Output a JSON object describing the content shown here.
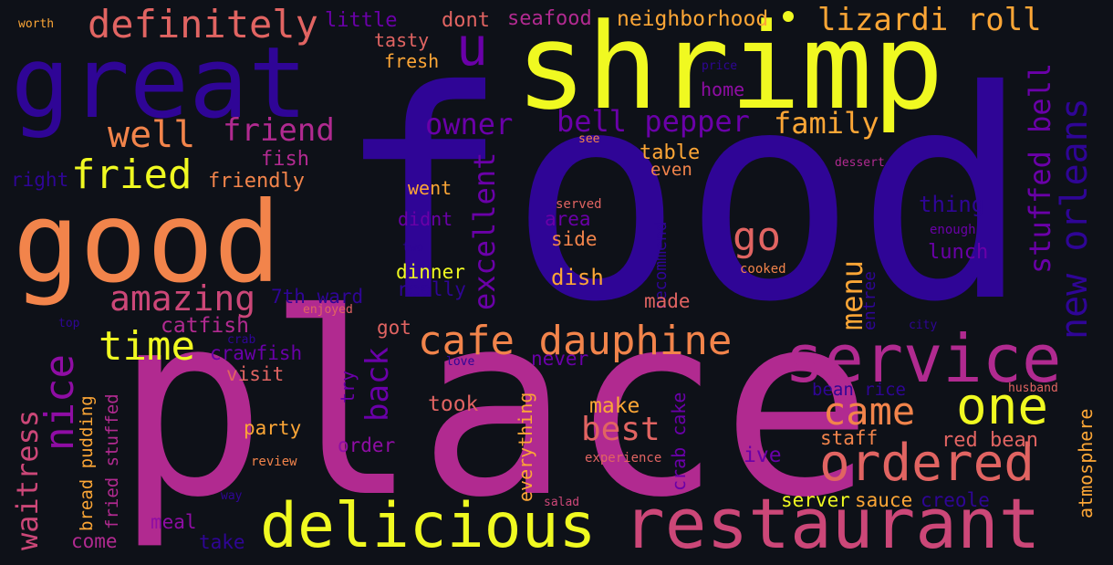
{
  "palette": {
    "background": "#0e1118",
    "deep_indigo": "#2f0596",
    "purple": "#6a00a8",
    "violet": "#8f0da4",
    "magenta": "#b12a90",
    "pink": "#cc4778",
    "salmon": "#e16462",
    "orange": "#f2844b",
    "amber": "#fca636",
    "yellow": "#f0f921"
  },
  "words": [
    {
      "text": "food",
      "color": "#2f0596",
      "weight": 100
    },
    {
      "text": "place",
      "color": "#b12a90",
      "weight": 98
    },
    {
      "text": "shrimp",
      "color": "#f0f921",
      "weight": 60
    },
    {
      "text": "great",
      "color": "#2f0596",
      "weight": 55
    },
    {
      "text": "good",
      "color": "#f2844b",
      "weight": 55
    },
    {
      "text": "restaurant",
      "color": "#cc4778",
      "weight": 45
    },
    {
      "text": "delicious",
      "color": "#f0f921",
      "weight": 42
    },
    {
      "text": "service",
      "color": "#b12a90",
      "weight": 40
    },
    {
      "text": "ordered",
      "color": "#e16462",
      "weight": 34
    },
    {
      "text": "one",
      "color": "#f0f921",
      "weight": 34
    },
    {
      "text": "cafe dauphine",
      "color": "#f2844b",
      "weight": 30
    },
    {
      "text": "new orleans",
      "color": "#2f0596",
      "weight": 30
    },
    {
      "text": "definitely",
      "color": "#e16462",
      "weight": 26
    },
    {
      "text": "fried",
      "color": "#f0f921",
      "weight": 26
    },
    {
      "text": "time",
      "color": "#f0f921",
      "weight": 26
    },
    {
      "text": "nice",
      "color": "#8f0da4",
      "weight": 26
    },
    {
      "text": "came",
      "color": "#f2844b",
      "weight": 26
    },
    {
      "text": "amazing",
      "color": "#cc4778",
      "weight": 24
    },
    {
      "text": "u",
      "color": "#6a00a8",
      "weight": 26
    },
    {
      "text": "well",
      "color": "#f2844b",
      "weight": 24
    },
    {
      "text": "lizardi roll",
      "color": "#fca636",
      "weight": 22
    },
    {
      "text": "stuffed bell",
      "color": "#6a00a8",
      "weight": 22
    },
    {
      "text": "bell pepper",
      "color": "#6a00a8",
      "weight": 22
    },
    {
      "text": "go",
      "color": "#e16462",
      "weight": 24
    },
    {
      "text": "best",
      "color": "#e16462",
      "weight": 22
    },
    {
      "text": "back",
      "color": "#6a00a8",
      "weight": 22
    },
    {
      "text": "friend",
      "color": "#b12a90",
      "weight": 22
    },
    {
      "text": "owner",
      "color": "#6a00a8",
      "weight": 22
    },
    {
      "text": "family",
      "color": "#fca636",
      "weight": 20
    },
    {
      "text": "excellent",
      "color": "#6a00a8",
      "weight": 20
    },
    {
      "text": "waitress",
      "color": "#cc4778",
      "weight": 20
    },
    {
      "text": "menu",
      "color": "#fca636",
      "weight": 20
    },
    {
      "text": "red bean",
      "color": "#e16462",
      "weight": 14
    },
    {
      "text": "atmosphere",
      "color": "#fca636",
      "weight": 12
    },
    {
      "text": "neighborhood",
      "color": "#fca636",
      "weight": 14
    },
    {
      "text": "seafood",
      "color": "#b12a90",
      "weight": 14
    },
    {
      "text": "little",
      "color": "#6a00a8",
      "weight": 14
    },
    {
      "text": "dont",
      "color": "#e16462",
      "weight": 14
    },
    {
      "text": "tasty",
      "color": "#e16462",
      "weight": 13
    },
    {
      "text": "fresh",
      "color": "#fca636",
      "weight": 13
    },
    {
      "text": "worth",
      "color": "#fca636",
      "weight": 9
    },
    {
      "text": "price",
      "color": "#2f0596",
      "weight": 9
    },
    {
      "text": "home",
      "color": "#8f0da4",
      "weight": 13
    },
    {
      "text": "see",
      "color": "#f2844b",
      "weight": 9
    },
    {
      "text": "table",
      "color": "#fca636",
      "weight": 14
    },
    {
      "text": "even",
      "color": "#f2844b",
      "weight": 13
    },
    {
      "text": "dessert",
      "color": "#b12a90",
      "weight": 9
    },
    {
      "text": "fish",
      "color": "#b12a90",
      "weight": 14
    },
    {
      "text": "friendly",
      "color": "#f2844b",
      "weight": 14
    },
    {
      "text": "right",
      "color": "#2f0596",
      "weight": 14
    },
    {
      "text": "went",
      "color": "#fca636",
      "weight": 14
    },
    {
      "text": "didnt",
      "color": "#6a00a8",
      "weight": 14
    },
    {
      "text": "served",
      "color": "#e16462",
      "weight": 10
    },
    {
      "text": "area",
      "color": "#6a00a8",
      "weight": 14
    },
    {
      "text": "recommend",
      "color": "#2f0596",
      "weight": 12
    },
    {
      "text": "thing",
      "color": "#2f0596",
      "weight": 16
    },
    {
      "text": "enough",
      "color": "#6a00a8",
      "weight": 10
    },
    {
      "text": "side",
      "color": "#f2844b",
      "weight": 14
    },
    {
      "text": "two",
      "color": "#2f0596",
      "weight": 9
    },
    {
      "text": "lunch",
      "color": "#6a00a8",
      "weight": 14
    },
    {
      "text": "dinner",
      "color": "#f0f921",
      "weight": 14
    },
    {
      "text": "dish",
      "color": "#fca636",
      "weight": 16
    },
    {
      "text": "cooked",
      "color": "#f2844b",
      "weight": 10
    },
    {
      "text": "entree",
      "color": "#2f0596",
      "weight": 12
    },
    {
      "text": "7th ward",
      "color": "#2f0596",
      "weight": 14
    },
    {
      "text": "really",
      "color": "#2f0596",
      "weight": 14
    },
    {
      "text": "made",
      "color": "#e16462",
      "weight": 14
    },
    {
      "text": "enjoyed",
      "color": "#e16462",
      "weight": 9
    },
    {
      "text": "top",
      "color": "#2f0596",
      "weight": 9
    },
    {
      "text": "catfish",
      "color": "#b12a90",
      "weight": 16
    },
    {
      "text": "crab",
      "color": "#2f0596",
      "weight": 9
    },
    {
      "text": "city",
      "color": "#2f0596",
      "weight": 9
    },
    {
      "text": "got",
      "color": "#e16462",
      "weight": 14
    },
    {
      "text": "crawfish",
      "color": "#6a00a8",
      "weight": 14
    },
    {
      "text": "love",
      "color": "#2f0596",
      "weight": 9
    },
    {
      "text": "never",
      "color": "#6a00a8",
      "weight": 14
    },
    {
      "text": "visit",
      "color": "#e16462",
      "weight": 14
    },
    {
      "text": "try",
      "color": "#6a00a8",
      "weight": 13
    },
    {
      "text": "bean rice",
      "color": "#2f0596",
      "weight": 13
    },
    {
      "text": "husband",
      "color": "#e16462",
      "weight": 9
    },
    {
      "text": "took",
      "color": "#e16462",
      "weight": 16
    },
    {
      "text": "make",
      "color": "#fca636",
      "weight": 16
    },
    {
      "text": "everything",
      "color": "#fca636",
      "weight": 14
    },
    {
      "text": "crab cake",
      "color": "#6a00a8",
      "weight": 14
    },
    {
      "text": "bread pudding",
      "color": "#fca636",
      "weight": 13
    },
    {
      "text": "fried stuffed",
      "color": "#b12a90",
      "weight": 13
    },
    {
      "text": "party",
      "color": "#fca636",
      "weight": 14
    },
    {
      "text": "staff",
      "color": "#f2844b",
      "weight": 14
    },
    {
      "text": "order",
      "color": "#8f0da4",
      "weight": 14
    },
    {
      "text": "review",
      "color": "#f2844b",
      "weight": 10
    },
    {
      "text": "experience",
      "color": "#e16462",
      "weight": 10
    },
    {
      "text": "ive",
      "color": "#6a00a8",
      "weight": 16
    },
    {
      "text": "server",
      "color": "#f0f921",
      "weight": 14
    },
    {
      "text": "sauce",
      "color": "#fca636",
      "weight": 14
    },
    {
      "text": "creole",
      "color": "#2f0596",
      "weight": 14
    },
    {
      "text": "way",
      "color": "#2f0596",
      "weight": 9
    },
    {
      "text": "salad",
      "color": "#cc4778",
      "weight": 9
    },
    {
      "text": "meal",
      "color": "#8f0da4",
      "weight": 14
    },
    {
      "text": "come",
      "color": "#b12a90",
      "weight": 14
    },
    {
      "text": "take",
      "color": "#2f0596",
      "weight": 14
    }
  ]
}
